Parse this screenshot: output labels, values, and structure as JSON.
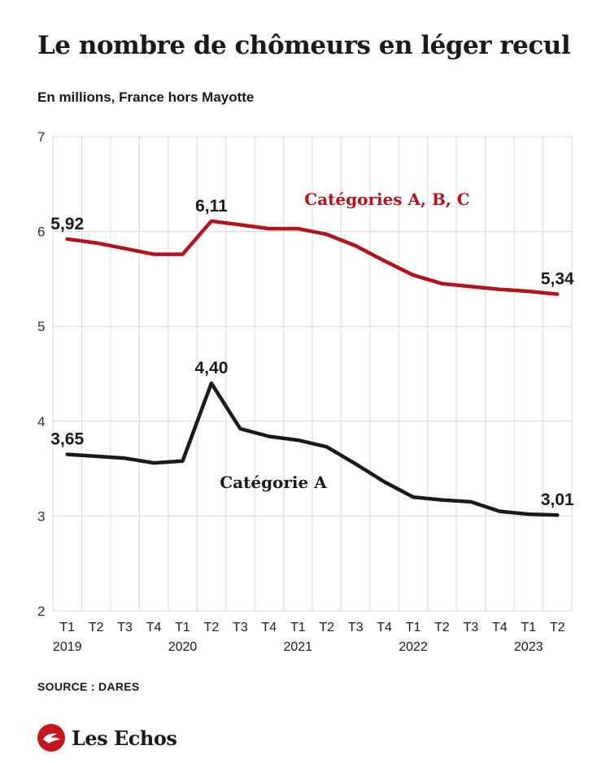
{
  "header": {
    "title": "Le nombre de chômeurs en léger recul",
    "subtitle": "En millions, France hors Mayotte"
  },
  "footer": {
    "source": "SOURCE : DARES",
    "brand": "Les Echos",
    "brand_icon": "les-echos-bird-icon"
  },
  "colors": {
    "abc": "#b3131b",
    "a": "#1a1a1a",
    "grid": "#d9d9d9",
    "brand": "#c4161c"
  },
  "chart_data": {
    "type": "line",
    "ylim": [
      2,
      7
    ],
    "yticks": [
      2,
      3,
      4,
      5,
      6,
      7
    ],
    "grid": true,
    "x_tick_labels": [
      "T1",
      "T2",
      "T3",
      "T4",
      "T1",
      "T2",
      "T3",
      "T4",
      "T1",
      "T2",
      "T3",
      "T4",
      "T1",
      "T2",
      "T3",
      "T4",
      "T1",
      "T2"
    ],
    "x_year_labels": [
      {
        "label": "2019",
        "tick_index": 0
      },
      {
        "label": "2020",
        "tick_index": 4
      },
      {
        "label": "2021",
        "tick_index": 8
      },
      {
        "label": "2022",
        "tick_index": 12
      },
      {
        "label": "2023",
        "tick_index": 16
      }
    ],
    "x": [
      "2019-T1",
      "2019-T2",
      "2019-T3",
      "2019-T4",
      "2020-T1",
      "2020-T2",
      "2020-T3",
      "2020-T4",
      "2021-T1",
      "2021-T2",
      "2021-T3",
      "2021-T4",
      "2022-T1",
      "2022-T2",
      "2022-T3",
      "2022-T4",
      "2023-T1",
      "2023-T2"
    ],
    "series": [
      {
        "name": "Catégories A, B, C",
        "color_key": "abc",
        "values": [
          5.92,
          5.88,
          5.82,
          5.76,
          5.76,
          6.11,
          6.07,
          6.03,
          6.03,
          5.97,
          5.85,
          5.69,
          5.54,
          5.45,
          5.42,
          5.39,
          5.37,
          5.34
        ],
        "labels": [
          {
            "index": 0,
            "text": "5,92"
          },
          {
            "index": 5,
            "text": "6,11"
          },
          {
            "index": 17,
            "text": "5,34"
          }
        ]
      },
      {
        "name": "Catégorie A",
        "color_key": "a",
        "values": [
          3.65,
          3.63,
          3.61,
          3.56,
          3.58,
          4.4,
          3.92,
          3.84,
          3.8,
          3.73,
          3.55,
          3.36,
          3.2,
          3.17,
          3.15,
          3.05,
          3.02,
          3.01
        ],
        "labels": [
          {
            "index": 0,
            "text": "3,65"
          },
          {
            "index": 5,
            "text": "4,40"
          },
          {
            "index": 17,
            "text": "3,01"
          }
        ]
      }
    ]
  }
}
